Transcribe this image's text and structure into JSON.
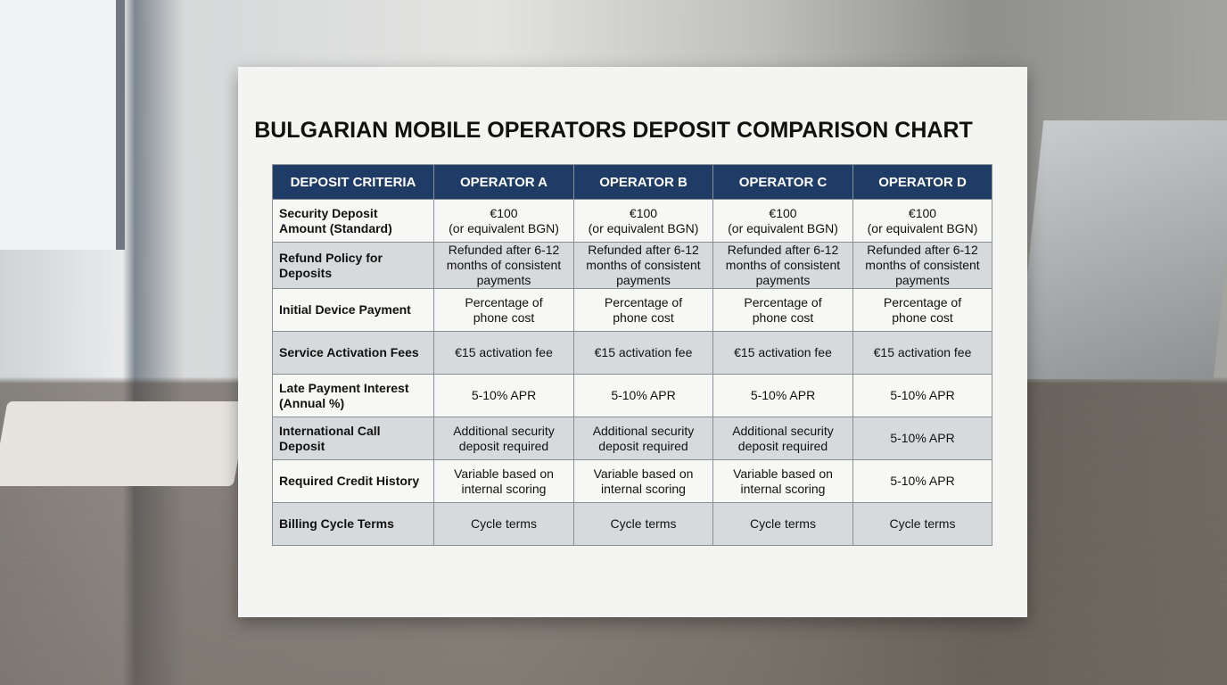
{
  "title": "BULGARIAN MOBILE OPERATORS DEPOSIT COMPARISON CHART",
  "table": {
    "headers": [
      "DEPOSIT CRITERIA",
      "OPERATOR A",
      "OPERATOR B",
      "OPERATOR C",
      "OPERATOR D"
    ],
    "rows": [
      [
        "Security Deposit\nAmount (Standard)",
        "€100\n(or equivalent BGN)",
        "€100\n(or equivalent BGN)",
        "€100\n(or equivalent BGN)",
        "€100\n(or equivalent BGN)"
      ],
      [
        "Refund Policy for\nDeposits",
        "Refunded after 6-12\nmonths of consistent\npayments",
        "Refunded after 6-12\nmonths of consistent\npayments",
        "Refunded after 6-12\nmonths of consistent\npayments",
        "Refunded after 6-12\nmonths of consistent\npayments"
      ],
      [
        "Initial Device Payment",
        "Percentage of\nphone cost",
        "Percentage of\nphone cost",
        "Percentage of\nphone cost",
        "Percentage of\nphone cost"
      ],
      [
        "Service Activation Fees",
        "€15 activation fee",
        "€15 activation fee",
        "€15 activation fee",
        "€15 activation fee"
      ],
      [
        "Late Payment Interest\n(Annual %)",
        "5-10% APR",
        "5-10% APR",
        "5-10% APR",
        "5-10% APR"
      ],
      [
        "International Call\nDeposit",
        "Additional security\ndeposit required",
        "Additional security\ndeposit required",
        "Additional security\ndeposit required",
        "5-10% APR"
      ],
      [
        "Required Credit History",
        "Variable based on\ninternal scoring",
        "Variable based on\ninternal scoring",
        "Variable based on\ninternal scoring",
        "5-10% APR"
      ],
      [
        "Billing Cycle Terms",
        "Cycle terms",
        "Cycle terms",
        "Cycle terms",
        "Cycle terms"
      ]
    ]
  }
}
